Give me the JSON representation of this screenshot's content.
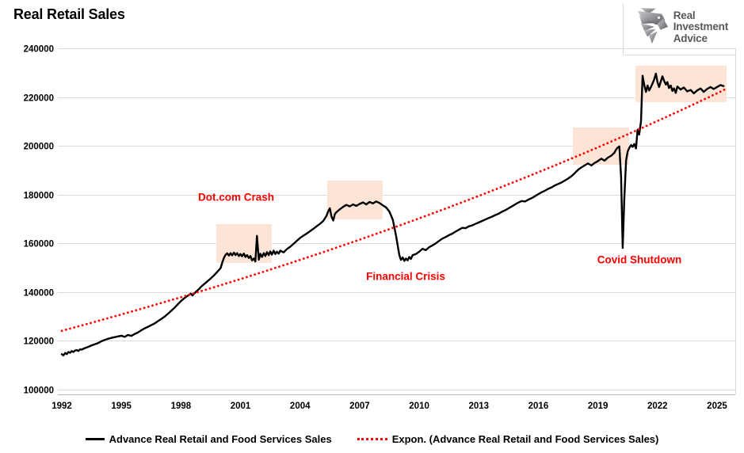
{
  "title": "Real Retail Sales",
  "logo": {
    "icon": "eagle-icon",
    "line1": "Real",
    "line2": "Investment",
    "line3": "Advice"
  },
  "colors": {
    "series_line": "#000000",
    "trend_line": "#ff0000",
    "annotation_text": "#ff0000",
    "highlight_fill": "#fce4d6",
    "gridline": "#dcdcdc",
    "axis_line": "#b9b9b9",
    "plot_right_border": "#d9d9d9"
  },
  "chart_data": {
    "type": "line",
    "title": "Real Retail Sales",
    "xlabel": "",
    "ylabel": "",
    "grid": "horizontal",
    "legend_position": "bottom-center",
    "x_axis": {
      "min": 1991.8,
      "max": 2026.0,
      "ticks": [
        1992,
        1995,
        1998,
        2001,
        2004,
        2007,
        2010,
        2013,
        2016,
        2019,
        2022,
        2025
      ]
    },
    "y_axis": {
      "min": 100000,
      "max": 240000,
      "ticks": [
        100000,
        120000,
        140000,
        160000,
        180000,
        200000,
        220000,
        240000
      ]
    },
    "series": [
      {
        "name": "Advance Real Retail and Food Services Sales",
        "type": "line",
        "color": "#000000",
        "style": "solid",
        "points": [
          [
            1992,
            114400
          ],
          [
            1992.08,
            113900
          ],
          [
            1992.17,
            114900
          ],
          [
            1992.25,
            114400
          ],
          [
            1992.33,
            115300
          ],
          [
            1992.42,
            115000
          ],
          [
            1992.5,
            115700
          ],
          [
            1992.58,
            115300
          ],
          [
            1992.67,
            115900
          ],
          [
            1992.75,
            116100
          ],
          [
            1992.83,
            115700
          ],
          [
            1992.92,
            116400
          ],
          [
            1993,
            116300
          ],
          [
            1993.17,
            116900
          ],
          [
            1993.33,
            117400
          ],
          [
            1993.5,
            118000
          ],
          [
            1993.67,
            118500
          ],
          [
            1993.83,
            119000
          ],
          [
            1994,
            119700
          ],
          [
            1994.17,
            120300
          ],
          [
            1994.33,
            120700
          ],
          [
            1994.5,
            121100
          ],
          [
            1994.67,
            121400
          ],
          [
            1994.83,
            121700
          ],
          [
            1995,
            122000
          ],
          [
            1995.17,
            121500
          ],
          [
            1995.33,
            122300
          ],
          [
            1995.5,
            121900
          ],
          [
            1995.67,
            122700
          ],
          [
            1995.83,
            123300
          ],
          [
            1996,
            124200
          ],
          [
            1996.17,
            125000
          ],
          [
            1996.33,
            125600
          ],
          [
            1996.5,
            126300
          ],
          [
            1996.67,
            127000
          ],
          [
            1996.83,
            127900
          ],
          [
            1997,
            128800
          ],
          [
            1997.17,
            129800
          ],
          [
            1997.33,
            130900
          ],
          [
            1997.5,
            132100
          ],
          [
            1997.67,
            133400
          ],
          [
            1997.83,
            134800
          ],
          [
            1998,
            136200
          ],
          [
            1998.17,
            137400
          ],
          [
            1998.33,
            138300
          ],
          [
            1998.5,
            139300
          ],
          [
            1998.58,
            138500
          ],
          [
            1998.75,
            140000
          ],
          [
            1998.92,
            141200
          ],
          [
            1999,
            142000
          ],
          [
            1999.17,
            143200
          ],
          [
            1999.33,
            144300
          ],
          [
            1999.5,
            145500
          ],
          [
            1999.67,
            146800
          ],
          [
            1999.83,
            148200
          ],
          [
            2000,
            149800
          ],
          [
            2000.08,
            152000
          ],
          [
            2000.17,
            154000
          ],
          [
            2000.25,
            155200
          ],
          [
            2000.33,
            155800
          ],
          [
            2000.42,
            154900
          ],
          [
            2000.5,
            155900
          ],
          [
            2000.58,
            155000
          ],
          [
            2000.67,
            156100
          ],
          [
            2000.75,
            155100
          ],
          [
            2000.83,
            155900
          ],
          [
            2000.92,
            154700
          ],
          [
            2001,
            155500
          ],
          [
            2001.08,
            154600
          ],
          [
            2001.17,
            155700
          ],
          [
            2001.25,
            154300
          ],
          [
            2001.33,
            155100
          ],
          [
            2001.42,
            153900
          ],
          [
            2001.5,
            154700
          ],
          [
            2001.58,
            152900
          ],
          [
            2001.67,
            153700
          ],
          [
            2001.75,
            152500
          ],
          [
            2001.83,
            163000
          ],
          [
            2001.92,
            153200
          ],
          [
            2002,
            155600
          ],
          [
            2002.08,
            154300
          ],
          [
            2002.17,
            155900
          ],
          [
            2002.25,
            154700
          ],
          [
            2002.33,
            156300
          ],
          [
            2002.42,
            155100
          ],
          [
            2002.5,
            156600
          ],
          [
            2002.58,
            155300
          ],
          [
            2002.67,
            156900
          ],
          [
            2002.75,
            155500
          ],
          [
            2002.83,
            156500
          ],
          [
            2002.92,
            155700
          ],
          [
            2003,
            156900
          ],
          [
            2003.17,
            156200
          ],
          [
            2003.33,
            157500
          ],
          [
            2003.5,
            158500
          ],
          [
            2003.67,
            159700
          ],
          [
            2003.83,
            160900
          ],
          [
            2004,
            162100
          ],
          [
            2004.17,
            163100
          ],
          [
            2004.33,
            163900
          ],
          [
            2004.5,
            164900
          ],
          [
            2004.67,
            165900
          ],
          [
            2004.83,
            166900
          ],
          [
            2005,
            167900
          ],
          [
            2005.17,
            169100
          ],
          [
            2005.33,
            171200
          ],
          [
            2005.42,
            173100
          ],
          [
            2005.5,
            174300
          ],
          [
            2005.58,
            171000
          ],
          [
            2005.67,
            169300
          ],
          [
            2005.75,
            171900
          ],
          [
            2005.83,
            172700
          ],
          [
            2005.92,
            173300
          ],
          [
            2006,
            173900
          ],
          [
            2006.17,
            174900
          ],
          [
            2006.33,
            175700
          ],
          [
            2006.5,
            175100
          ],
          [
            2006.67,
            175900
          ],
          [
            2006.83,
            175300
          ],
          [
            2007,
            176100
          ],
          [
            2007.17,
            176700
          ],
          [
            2007.33,
            175900
          ],
          [
            2007.5,
            176900
          ],
          [
            2007.67,
            176300
          ],
          [
            2007.83,
            177100
          ],
          [
            2008,
            176500
          ],
          [
            2008.17,
            175500
          ],
          [
            2008.33,
            174700
          ],
          [
            2008.5,
            172900
          ],
          [
            2008.67,
            169600
          ],
          [
            2008.83,
            163100
          ],
          [
            2009,
            155100
          ],
          [
            2009.08,
            153100
          ],
          [
            2009.17,
            154100
          ],
          [
            2009.25,
            152700
          ],
          [
            2009.33,
            153700
          ],
          [
            2009.42,
            152900
          ],
          [
            2009.5,
            154300
          ],
          [
            2009.58,
            153500
          ],
          [
            2009.67,
            155100
          ],
          [
            2009.83,
            155500
          ],
          [
            2010,
            156500
          ],
          [
            2010.17,
            157700
          ],
          [
            2010.33,
            157100
          ],
          [
            2010.5,
            158300
          ],
          [
            2010.67,
            159100
          ],
          [
            2010.83,
            159900
          ],
          [
            2011,
            160900
          ],
          [
            2011.17,
            161900
          ],
          [
            2011.33,
            162500
          ],
          [
            2011.5,
            163300
          ],
          [
            2011.67,
            163900
          ],
          [
            2011.83,
            164700
          ],
          [
            2012,
            165500
          ],
          [
            2012.17,
            166300
          ],
          [
            2012.33,
            166100
          ],
          [
            2012.5,
            166900
          ],
          [
            2012.67,
            167300
          ],
          [
            2012.83,
            167900
          ],
          [
            2013,
            168500
          ],
          [
            2013.17,
            169100
          ],
          [
            2013.33,
            169700
          ],
          [
            2013.5,
            170300
          ],
          [
            2013.67,
            170900
          ],
          [
            2013.83,
            171500
          ],
          [
            2014,
            172100
          ],
          [
            2014.17,
            172900
          ],
          [
            2014.33,
            173500
          ],
          [
            2014.5,
            174300
          ],
          [
            2014.67,
            175100
          ],
          [
            2014.83,
            175900
          ],
          [
            2015,
            176700
          ],
          [
            2015.17,
            177300
          ],
          [
            2015.33,
            177100
          ],
          [
            2015.5,
            177900
          ],
          [
            2015.67,
            178500
          ],
          [
            2015.83,
            179300
          ],
          [
            2016,
            180100
          ],
          [
            2016.17,
            180900
          ],
          [
            2016.33,
            181500
          ],
          [
            2016.5,
            182300
          ],
          [
            2016.67,
            182900
          ],
          [
            2016.83,
            183700
          ],
          [
            2017,
            184300
          ],
          [
            2017.17,
            184900
          ],
          [
            2017.33,
            185700
          ],
          [
            2017.5,
            186500
          ],
          [
            2017.67,
            187500
          ],
          [
            2017.83,
            188700
          ],
          [
            2018,
            190100
          ],
          [
            2018.17,
            191100
          ],
          [
            2018.33,
            191900
          ],
          [
            2018.5,
            192700
          ],
          [
            2018.67,
            191900
          ],
          [
            2018.83,
            192900
          ],
          [
            2019,
            193700
          ],
          [
            2019.17,
            194700
          ],
          [
            2019.33,
            193900
          ],
          [
            2019.5,
            195100
          ],
          [
            2019.67,
            195900
          ],
          [
            2019.83,
            197100
          ],
          [
            2019.92,
            198500
          ],
          [
            2020,
            199300
          ],
          [
            2020.08,
            199700
          ],
          [
            2020.17,
            187000
          ],
          [
            2020.25,
            158000
          ],
          [
            2020.33,
            178000
          ],
          [
            2020.42,
            194000
          ],
          [
            2020.5,
            197600
          ],
          [
            2020.58,
            199100
          ],
          [
            2020.67,
            200300
          ],
          [
            2020.75,
            199500
          ],
          [
            2020.83,
            200700
          ],
          [
            2020.92,
            198900
          ],
          [
            2021,
            206600
          ],
          [
            2021.08,
            204600
          ],
          [
            2021.17,
            210000
          ],
          [
            2021.25,
            228700
          ],
          [
            2021.33,
            225100
          ],
          [
            2021.42,
            222100
          ],
          [
            2021.5,
            224700
          ],
          [
            2021.58,
            222700
          ],
          [
            2021.67,
            224100
          ],
          [
            2021.75,
            225500
          ],
          [
            2021.83,
            227100
          ],
          [
            2021.92,
            229600
          ],
          [
            2022,
            226100
          ],
          [
            2022.08,
            224100
          ],
          [
            2022.17,
            226500
          ],
          [
            2022.25,
            228500
          ],
          [
            2022.33,
            226700
          ],
          [
            2022.42,
            225100
          ],
          [
            2022.5,
            226100
          ],
          [
            2022.58,
            223700
          ],
          [
            2022.67,
            224700
          ],
          [
            2022.75,
            222500
          ],
          [
            2022.83,
            223500
          ],
          [
            2022.92,
            221700
          ],
          [
            2023,
            224300
          ],
          [
            2023.17,
            223100
          ],
          [
            2023.33,
            223900
          ],
          [
            2023.5,
            222300
          ],
          [
            2023.67,
            222900
          ],
          [
            2023.83,
            221500
          ],
          [
            2024,
            222700
          ],
          [
            2024.17,
            223500
          ],
          [
            2024.33,
            222100
          ],
          [
            2024.5,
            223300
          ],
          [
            2024.67,
            224100
          ],
          [
            2024.83,
            223300
          ],
          [
            2025,
            224100
          ],
          [
            2025.17,
            224900
          ],
          [
            2025.33,
            224500
          ]
        ]
      },
      {
        "name": "Expon. (Advance Real Retail and Food Services Sales)",
        "type": "exponential_trend",
        "color": "#ff0000",
        "style": "dotted",
        "start": [
          1992.0,
          124000
        ],
        "end": [
          2025.5,
          223500
        ]
      }
    ],
    "highlight_regions": [
      {
        "label": "dotcom-crash-box",
        "x1": 1999.78,
        "x2": 2002.57,
        "y1": 151900,
        "y2": 167800,
        "fill": "#fce4d6"
      },
      {
        "label": "pre-gfc-box",
        "x1": 2005.37,
        "x2": 2008.16,
        "y1": 169800,
        "y2": 185700,
        "fill": "#fce4d6"
      },
      {
        "label": "pre-covid-box",
        "x1": 2017.74,
        "x2": 2020.57,
        "y1": 192200,
        "y2": 207500,
        "fill": "#fce4d6"
      },
      {
        "label": "post-covid-box",
        "x1": 2020.89,
        "x2": 2025.48,
        "y1": 217900,
        "y2": 232900,
        "fill": "#fce4d6"
      }
    ],
    "annotations": [
      {
        "text": "Dot.com Crash",
        "x": 2000.78,
        "y": 178900,
        "color": "#ff0000"
      },
      {
        "text": "Financial Crisis",
        "x": 2009.32,
        "y": 146300,
        "color": "#ff0000"
      },
      {
        "text": "Covid Shutdown",
        "x": 2021.09,
        "y": 153200,
        "color": "#ff0000"
      }
    ]
  }
}
